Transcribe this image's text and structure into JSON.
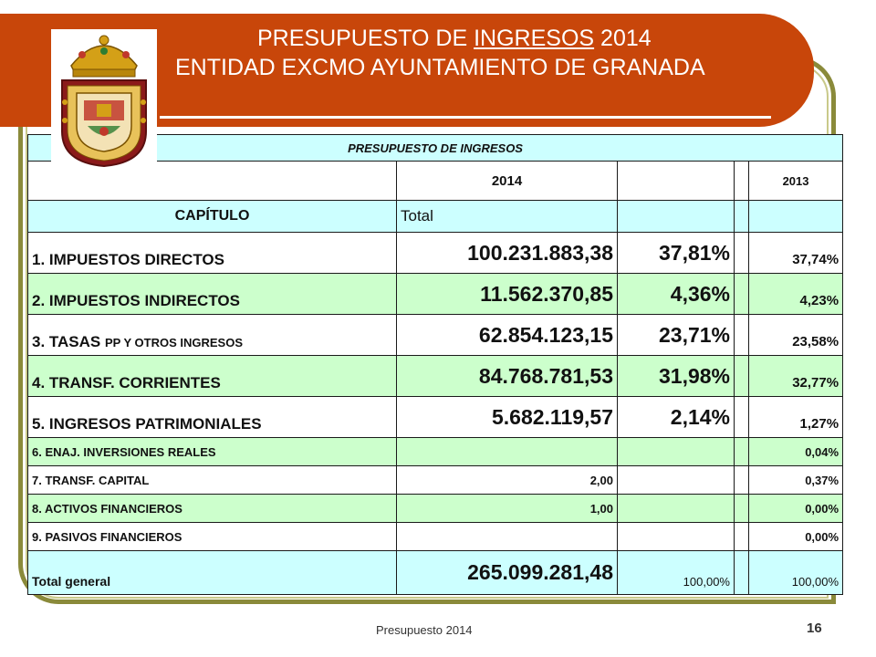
{
  "header": {
    "title_prefix": "PRESUPUESTO DE",
    "title_highlight": "INGRESOS",
    "title_year": "2014",
    "subtitle": "ENTIDAD EXCMO AYUNTAMIENTO DE GRANADA"
  },
  "colors": {
    "banner": "#c8460a",
    "frame": "#8a8a3a",
    "header_cells": "#ccffff",
    "row_green": "#ccffcc"
  },
  "crest": {
    "icon": "coat-of-arms-icon"
  },
  "table": {
    "title": "PRESUPUESTO DE INGRESOS",
    "year_current": "2014",
    "year_previous": "2013",
    "col_chapter": "CAPÍTULO",
    "col_total": "Total",
    "rows": [
      {
        "label": "1. IMPUESTOS DIRECTOS",
        "amount": "100.231.883,38",
        "pct": "37,81%",
        "prev": "37,74%"
      },
      {
        "label": "2. IMPUESTOS INDIRECTOS",
        "amount": "11.562.370,85",
        "pct": "4,36%",
        "prev": "4,23%"
      },
      {
        "label_main": "3. TASAS",
        "label_small": "PP Y OTROS INGRESOS",
        "amount": "62.854.123,15",
        "pct": "23,71%",
        "prev": "23,58%"
      },
      {
        "label": "4. TRANSF. CORRIENTES",
        "amount": "84.768.781,53",
        "pct": "31,98%",
        "prev": "32,77%"
      },
      {
        "label": "5. INGRESOS PATRIMONIALES",
        "amount": "5.682.119,57",
        "pct": "2,14%",
        "prev": "1,27%"
      },
      {
        "label": "6. ENAJ. INVERSIONES REALES",
        "amount": "",
        "pct": "",
        "prev": "0,04%"
      },
      {
        "label": "7. TRANSF. CAPITAL",
        "amount": "2,00",
        "pct": "",
        "prev": "0,37%"
      },
      {
        "label": "8. ACTIVOS FINANCIEROS",
        "amount": "1,00",
        "pct": "",
        "prev": "0,00%"
      },
      {
        "label": "9. PASIVOS FINANCIEROS",
        "amount": "",
        "pct": "",
        "prev": "0,00%"
      }
    ],
    "total": {
      "label": "Total general",
      "amount": "265.099.281,48",
      "pct": "100,00%",
      "prev": "100,00%"
    }
  },
  "footer": {
    "text": "Presupuesto 2014",
    "page": "16"
  }
}
